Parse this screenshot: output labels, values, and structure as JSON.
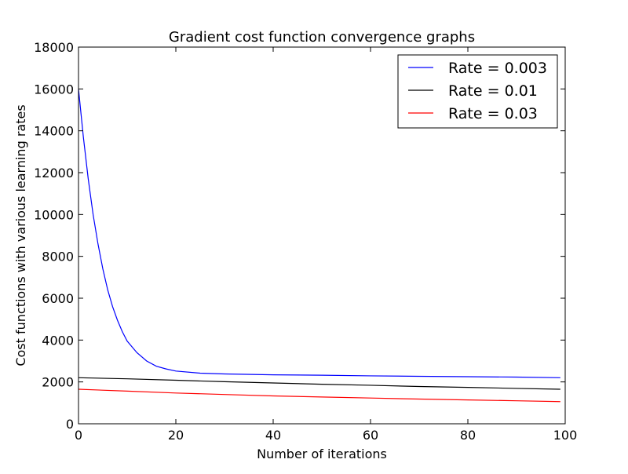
{
  "chart_data": {
    "type": "line",
    "title": "Gradient cost function convergence graphs",
    "xlabel": "Number of iterations",
    "ylabel": "Cost functions with various learning rates",
    "xlim": [
      0,
      100
    ],
    "ylim": [
      0,
      18000
    ],
    "xticks": [
      0,
      20,
      40,
      60,
      80,
      100
    ],
    "yticks": [
      0,
      2000,
      4000,
      6000,
      8000,
      10000,
      12000,
      14000,
      16000,
      18000
    ],
    "grid": false,
    "legend_position": "top-right",
    "series": [
      {
        "name": "Rate = 0.003",
        "color": "#0000ff",
        "x": [
          0,
          1,
          2,
          3,
          4,
          5,
          6,
          7,
          8,
          9,
          10,
          12,
          14,
          16,
          18,
          20,
          25,
          30,
          40,
          50,
          60,
          70,
          80,
          90,
          99
        ],
        "y": [
          16000,
          13700,
          11700,
          10000,
          8600,
          7400,
          6400,
          5600,
          4950,
          4400,
          3950,
          3400,
          3000,
          2750,
          2620,
          2520,
          2420,
          2380,
          2340,
          2320,
          2290,
          2270,
          2250,
          2230,
          2200
        ]
      },
      {
        "name": "Rate = 0.01",
        "color": "#000000",
        "x": [
          0,
          10,
          20,
          30,
          40,
          50,
          60,
          70,
          80,
          90,
          99
        ],
        "y": [
          2200,
          2150,
          2080,
          2010,
          1950,
          1890,
          1840,
          1780,
          1740,
          1690,
          1650
        ]
      },
      {
        "name": "Rate = 0.03",
        "color": "#ff0000",
        "x": [
          0,
          10,
          20,
          30,
          40,
          50,
          60,
          70,
          80,
          90,
          99
        ],
        "y": [
          1650,
          1560,
          1470,
          1400,
          1330,
          1280,
          1230,
          1180,
          1140,
          1100,
          1060
        ]
      }
    ]
  }
}
